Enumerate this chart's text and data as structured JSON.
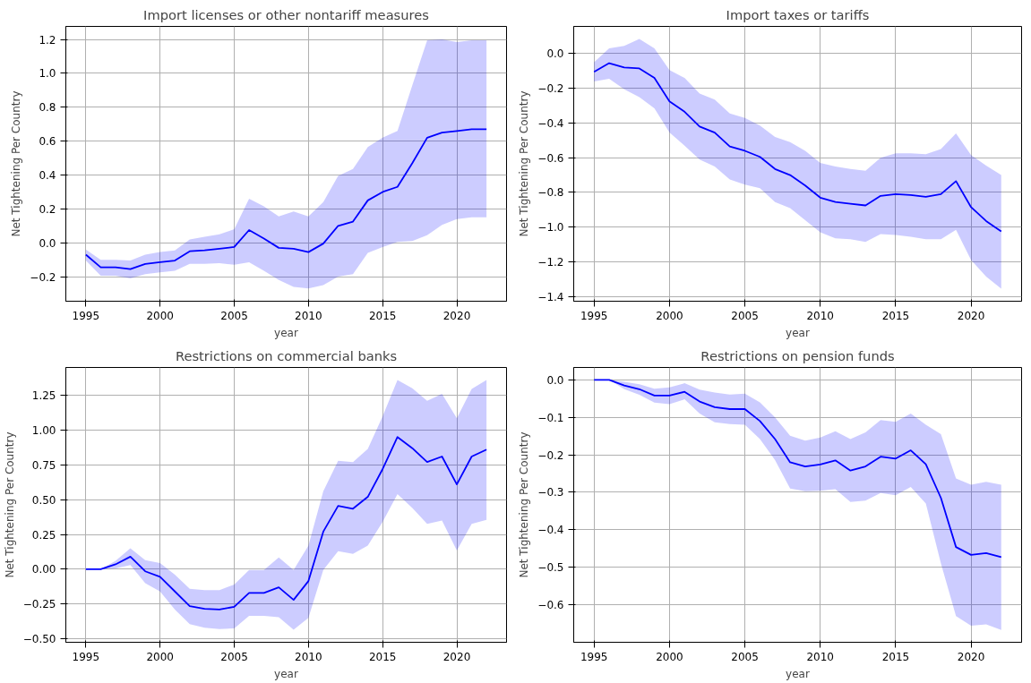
{
  "chart_data": [
    {
      "type": "line",
      "title": "Import licenses or other nontariff measures",
      "xlabel": "year",
      "ylabel": "Net Tightening Per Country",
      "grid": true,
      "x": [
        1995,
        1996,
        1997,
        1998,
        1999,
        2000,
        2001,
        2002,
        2003,
        2004,
        2005,
        2006,
        2007,
        2008,
        2009,
        2010,
        2011,
        2012,
        2013,
        2014,
        2015,
        2016,
        2017,
        2018,
        2019,
        2020,
        2021,
        2022
      ],
      "xlim": [
        1993.65,
        2023.35
      ],
      "xticks": [
        1995,
        2000,
        2005,
        2010,
        2015,
        2020
      ],
      "ylim": [
        -0.345,
        1.277
      ],
      "yticks": [
        {
          "value": -0.2,
          "label": "−0.2"
        },
        {
          "value": 0,
          "label": "0.0"
        },
        {
          "value": 0.2,
          "label": "0.2"
        },
        {
          "value": 0.4,
          "label": "0.4"
        },
        {
          "value": 0.6,
          "label": "0.6"
        },
        {
          "value": 0.8,
          "label": "0.8"
        },
        {
          "value": 1.0,
          "label": "1.0"
        },
        {
          "value": 1.2,
          "label": "1.2"
        }
      ],
      "series": [
        {
          "color": "#0000ff",
          "values": [
            -0.07,
            -0.145,
            -0.145,
            -0.155,
            -0.125,
            -0.115,
            -0.105,
            -0.05,
            -0.045,
            -0.035,
            -0.025,
            0.075,
            0.025,
            -0.03,
            -0.035,
            -0.055,
            -0.005,
            0.1,
            0.125,
            0.25,
            0.3,
            0.33,
            0.47,
            0.62,
            0.65,
            0.66,
            0.67,
            0.67
          ],
          "upper": [
            -0.04,
            -0.1,
            -0.1,
            -0.105,
            -0.07,
            -0.055,
            -0.045,
            0.02,
            0.035,
            0.05,
            0.08,
            0.26,
            0.215,
            0.155,
            0.185,
            0.155,
            0.24,
            0.395,
            0.435,
            0.565,
            0.62,
            0.66,
            0.93,
            1.195,
            1.2,
            1.185,
            1.195,
            1.195
          ],
          "lower": [
            -0.105,
            -0.195,
            -0.195,
            -0.21,
            -0.185,
            -0.175,
            -0.165,
            -0.125,
            -0.125,
            -0.12,
            -0.13,
            -0.115,
            -0.165,
            -0.22,
            -0.26,
            -0.27,
            -0.25,
            -0.2,
            -0.185,
            -0.06,
            -0.025,
            0.005,
            0.01,
            0.045,
            0.105,
            0.14,
            0.15,
            0.15
          ]
        }
      ]
    },
    {
      "type": "line",
      "title": "Import taxes or tariffs",
      "xlabel": "year",
      "ylabel": "Net Tightening Per Country",
      "grid": true,
      "x": [
        1995,
        1996,
        1997,
        1998,
        1999,
        2000,
        2001,
        2002,
        2003,
        2004,
        2005,
        2006,
        2007,
        2008,
        2009,
        2010,
        2011,
        2012,
        2013,
        2014,
        2015,
        2016,
        2017,
        2018,
        2019,
        2020,
        2021,
        2022
      ],
      "xlim": [
        1993.65,
        2023.35
      ],
      "xticks": [
        1995,
        2000,
        2005,
        2010,
        2015,
        2020
      ],
      "ylim": [
        -1.427,
        0.157
      ],
      "yticks": [
        {
          "value": -1.4,
          "label": "−1.4"
        },
        {
          "value": -1.2,
          "label": "−1.2"
        },
        {
          "value": -1.0,
          "label": "−1.0"
        },
        {
          "value": -0.8,
          "label": "−0.8"
        },
        {
          "value": -0.6,
          "label": "−0.6"
        },
        {
          "value": -0.4,
          "label": "−0.4"
        },
        {
          "value": -0.2,
          "label": "−0.2"
        },
        {
          "value": 0,
          "label": "0.0"
        }
      ],
      "series": [
        {
          "color": "#0000ff",
          "values": [
            -0.105,
            -0.055,
            -0.08,
            -0.085,
            -0.14,
            -0.275,
            -0.335,
            -0.42,
            -0.455,
            -0.535,
            -0.56,
            -0.595,
            -0.665,
            -0.7,
            -0.76,
            -0.83,
            -0.855,
            -0.865,
            -0.875,
            -0.82,
            -0.81,
            -0.815,
            -0.825,
            -0.81,
            -0.735,
            -0.885,
            -0.965,
            -1.025
          ],
          "upper": [
            -0.05,
            0.03,
            0.045,
            0.085,
            0.03,
            -0.095,
            -0.14,
            -0.23,
            -0.265,
            -0.345,
            -0.37,
            -0.415,
            -0.48,
            -0.51,
            -0.56,
            -0.63,
            -0.65,
            -0.665,
            -0.675,
            -0.6,
            -0.575,
            -0.575,
            -0.58,
            -0.55,
            -0.46,
            -0.585,
            -0.645,
            -0.7
          ],
          "lower": [
            -0.16,
            -0.145,
            -0.205,
            -0.25,
            -0.315,
            -0.455,
            -0.53,
            -0.61,
            -0.65,
            -0.725,
            -0.755,
            -0.775,
            -0.855,
            -0.89,
            -0.96,
            -1.03,
            -1.065,
            -1.07,
            -1.085,
            -1.04,
            -1.045,
            -1.055,
            -1.07,
            -1.07,
            -1.015,
            -1.19,
            -1.285,
            -1.355
          ]
        }
      ]
    },
    {
      "type": "line",
      "title": "Restrictions on commercial banks",
      "xlabel": "year",
      "ylabel": "Net Tightening Per Country",
      "grid": true,
      "x": [
        1995,
        1996,
        1997,
        1998,
        1999,
        2000,
        2001,
        2002,
        2003,
        2004,
        2005,
        2006,
        2007,
        2008,
        2009,
        2010,
        2011,
        2012,
        2013,
        2014,
        2015,
        2016,
        2017,
        2018,
        2019,
        2020,
        2021,
        2022
      ],
      "xlim": [
        1993.65,
        2023.35
      ],
      "xticks": [
        1995,
        2000,
        2005,
        2010,
        2015,
        2020
      ],
      "ylim": [
        -0.525,
        1.45
      ],
      "yticks": [
        {
          "value": -0.5,
          "label": "−0.50"
        },
        {
          "value": -0.25,
          "label": "−0.25"
        },
        {
          "value": 0,
          "label": "0.00"
        },
        {
          "value": 0.25,
          "label": "0.25"
        },
        {
          "value": 0.5,
          "label": "0.50"
        },
        {
          "value": 0.75,
          "label": "0.75"
        },
        {
          "value": 1.0,
          "label": "1.00"
        },
        {
          "value": 1.25,
          "label": "1.25"
        }
      ],
      "series": [
        {
          "color": "#0000ff",
          "values": [
            0,
            0,
            0.035,
            0.09,
            -0.015,
            -0.055,
            -0.16,
            -0.265,
            -0.285,
            -0.29,
            -0.27,
            -0.17,
            -0.17,
            -0.13,
            -0.22,
            -0.085,
            0.27,
            0.455,
            0.435,
            0.52,
            0.72,
            0.95,
            0.87,
            0.77,
            0.81,
            0.61,
            0.81,
            0.86
          ],
          "upper": [
            0,
            0,
            0.06,
            0.15,
            0.065,
            0.045,
            -0.04,
            -0.14,
            -0.15,
            -0.15,
            -0.11,
            -0.005,
            -0.005,
            0.085,
            -0.005,
            0.17,
            0.56,
            0.78,
            0.77,
            0.865,
            1.1,
            1.36,
            1.3,
            1.21,
            1.26,
            1.085,
            1.295,
            1.36
          ],
          "lower": [
            0,
            0,
            0.005,
            0.03,
            -0.1,
            -0.16,
            -0.29,
            -0.395,
            -0.42,
            -0.43,
            -0.425,
            -0.335,
            -0.335,
            -0.345,
            -0.435,
            -0.35,
            -0.005,
            0.13,
            0.11,
            0.17,
            0.34,
            0.54,
            0.44,
            0.325,
            0.35,
            0.135,
            0.325,
            0.355
          ]
        }
      ]
    },
    {
      "type": "line",
      "title": "Restrictions on pension funds",
      "xlabel": "year",
      "ylabel": "Net Tightening Per Country",
      "grid": true,
      "x": [
        1995,
        1996,
        1997,
        1998,
        1999,
        2000,
        2001,
        2002,
        2003,
        2004,
        2005,
        2006,
        2007,
        2008,
        2009,
        2010,
        2011,
        2012,
        2013,
        2014,
        2015,
        2016,
        2017,
        2018,
        2019,
        2020,
        2021,
        2022
      ],
      "xlim": [
        1993.65,
        2023.35
      ],
      "xticks": [
        1995,
        2000,
        2005,
        2010,
        2015,
        2020
      ],
      "ylim": [
        -0.7,
        0.033
      ],
      "yticks": [
        {
          "value": -0.6,
          "label": "−0.6"
        },
        {
          "value": -0.5,
          "label": "−0.5"
        },
        {
          "value": -0.4,
          "label": "−0.4"
        },
        {
          "value": -0.3,
          "label": "−0.3"
        },
        {
          "value": -0.2,
          "label": "−0.2"
        },
        {
          "value": -0.1,
          "label": "−0.1"
        },
        {
          "value": 0,
          "label": "0.0"
        }
      ],
      "series": [
        {
          "color": "#0000ff",
          "values": [
            0,
            0,
            -0.015,
            -0.025,
            -0.042,
            -0.042,
            -0.032,
            -0.058,
            -0.073,
            -0.078,
            -0.078,
            -0.11,
            -0.158,
            -0.22,
            -0.231,
            -0.226,
            -0.215,
            -0.242,
            -0.231,
            -0.205,
            -0.21,
            -0.188,
            -0.225,
            -0.315,
            -0.446,
            -0.467,
            -0.462,
            -0.473
          ],
          "upper": [
            0,
            0,
            -0.005,
            -0.012,
            -0.024,
            -0.02,
            -0.009,
            -0.026,
            -0.034,
            -0.039,
            -0.037,
            -0.06,
            -0.1,
            -0.149,
            -0.162,
            -0.154,
            -0.137,
            -0.158,
            -0.14,
            -0.107,
            -0.112,
            -0.09,
            -0.12,
            -0.145,
            -0.263,
            -0.28,
            -0.272,
            -0.28
          ],
          "lower": [
            0,
            0,
            -0.025,
            -0.04,
            -0.061,
            -0.065,
            -0.052,
            -0.09,
            -0.113,
            -0.118,
            -0.12,
            -0.158,
            -0.214,
            -0.29,
            -0.297,
            -0.296,
            -0.292,
            -0.326,
            -0.322,
            -0.302,
            -0.308,
            -0.286,
            -0.33,
            -0.49,
            -0.63,
            -0.656,
            -0.652,
            -0.667
          ]
        }
      ]
    }
  ]
}
